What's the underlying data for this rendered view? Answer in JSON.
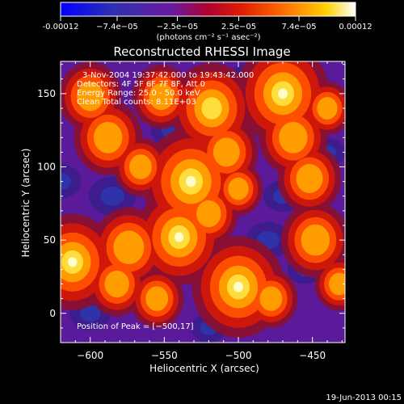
{
  "colorbar": {
    "tick_labels": [
      "-0.00012",
      "−7.4e−05",
      "−2.5e−05",
      "2.5e−05",
      "7.4e−05",
      "0.00012"
    ],
    "tick_values": [
      -0.00012,
      -7.4e-05,
      -2.5e-05,
      2.5e-05,
      7.4e-05,
      0.00012
    ],
    "range": [
      -0.00012,
      0.00012
    ],
    "unit_label": "(photons cm⁻² s⁻¹ asec⁻²)"
  },
  "chart_data": {
    "type": "heatmap",
    "title": "Reconstructed RHESSI Image",
    "xlabel": "Heliocentric X (arcsec)",
    "ylabel": "Heliocentric Y (arcsec)",
    "xlim": [
      -620,
      -428
    ],
    "ylim": [
      -20,
      172
    ],
    "x_ticks": [
      -600,
      -550,
      -500,
      -450
    ],
    "x_tick_labels": [
      "−600",
      "−550",
      "−500",
      "−450"
    ],
    "y_ticks": [
      0,
      50,
      100,
      150
    ],
    "y_tick_labels": [
      "0",
      "50",
      "100",
      "150"
    ],
    "colormap": "rainbow-heat (blue-violet-red-orange-yellow-white)",
    "peak_position": [
      -500,
      17
    ],
    "annotations": {
      "time_range": "3-Nov-2004 19:37:42.000 to 19:43:42.000",
      "detectors": "Detectors: 4F 5F 6F 7F 8F, Att 0",
      "energy": "Energy Range: 25.0 - 50.0 keV",
      "clean": "Clean     Total counts: 8.11E+03",
      "peak": "Position of Peak = [−500,17]"
    },
    "bright_sources": [
      {
        "x": -532,
        "y": 90,
        "level": 1.0
      },
      {
        "x": -518,
        "y": 140,
        "level": 0.85
      },
      {
        "x": -540,
        "y": 52,
        "level": 0.9
      },
      {
        "x": -500,
        "y": 18,
        "level": 0.95
      },
      {
        "x": -470,
        "y": 150,
        "level": 0.95
      },
      {
        "x": -463,
        "y": 120,
        "level": 0.7
      },
      {
        "x": -612,
        "y": 35,
        "level": 0.9
      },
      {
        "x": -574,
        "y": 45,
        "level": 0.75
      },
      {
        "x": -588,
        "y": 120,
        "level": 0.7
      },
      {
        "x": -600,
        "y": 148,
        "level": 0.65
      },
      {
        "x": -552,
        "y": 148,
        "level": 0.6
      },
      {
        "x": -582,
        "y": 20,
        "level": 0.6
      },
      {
        "x": -555,
        "y": 10,
        "level": 0.55
      },
      {
        "x": -520,
        "y": 68,
        "level": 0.6
      },
      {
        "x": -452,
        "y": 92,
        "level": 0.65
      },
      {
        "x": -448,
        "y": 50,
        "level": 0.7
      },
      {
        "x": -478,
        "y": 10,
        "level": 0.55
      },
      {
        "x": -508,
        "y": 110,
        "level": 0.65
      },
      {
        "x": -440,
        "y": 140,
        "level": 0.5
      },
      {
        "x": -500,
        "y": 85,
        "level": 0.5
      },
      {
        "x": -566,
        "y": 100,
        "level": 0.55
      },
      {
        "x": -432,
        "y": 20,
        "level": 0.5
      }
    ],
    "dark_sources": [
      {
        "x": -585,
        "y": 80,
        "level": 0.8
      },
      {
        "x": -545,
        "y": 125,
        "level": 0.7
      },
      {
        "x": -480,
        "y": 50,
        "level": 0.75
      },
      {
        "x": -600,
        "y": 0,
        "level": 0.7
      },
      {
        "x": -470,
        "y": 80,
        "level": 0.65
      },
      {
        "x": -560,
        "y": 30,
        "level": 0.7
      },
      {
        "x": -495,
        "y": 160,
        "level": 0.6
      },
      {
        "x": -620,
        "y": 90,
        "level": 0.7
      },
      {
        "x": -440,
        "y": 110,
        "level": 0.6
      },
      {
        "x": -525,
        "y": 30,
        "level": 0.65
      },
      {
        "x": -455,
        "y": 30,
        "level": 0.6
      },
      {
        "x": -520,
        "y": -10,
        "level": 0.6
      }
    ]
  },
  "footer": {
    "date": "19-Jun-2013 00:15"
  }
}
